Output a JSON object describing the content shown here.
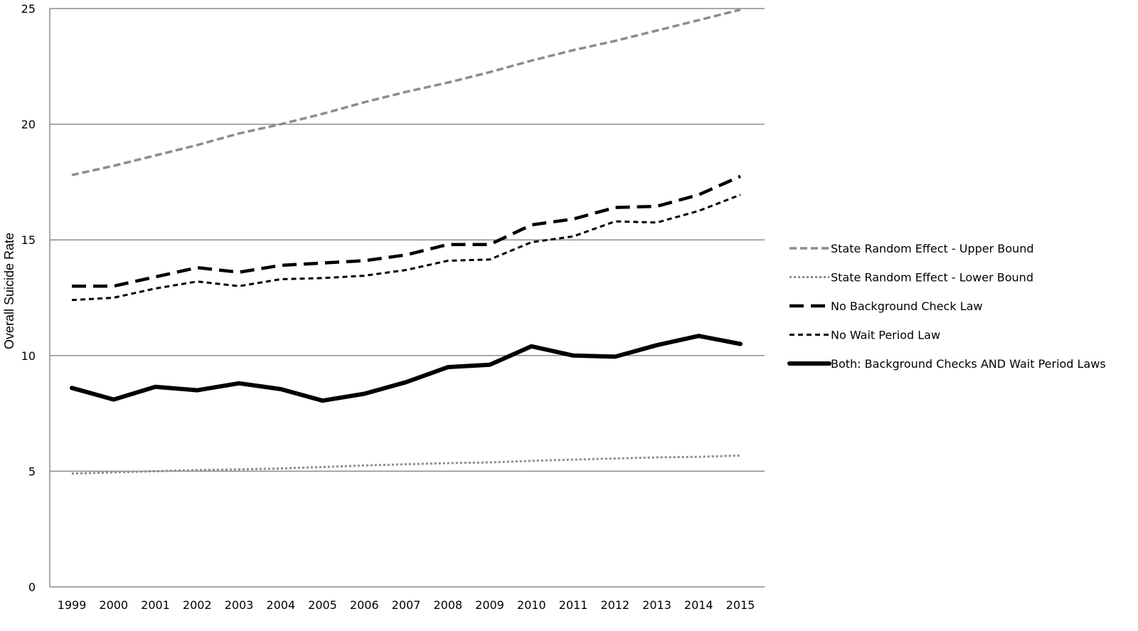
{
  "chart_data": {
    "type": "line",
    "ylabel": "Overall Suicide Rate",
    "xlabel": "",
    "ylim": [
      0,
      25
    ],
    "y_ticks": [
      0,
      5,
      10,
      15,
      20,
      25
    ],
    "grid": "horizontal",
    "legend_position": "right",
    "categories": [
      "1999",
      "2000",
      "2001",
      "2002",
      "2003",
      "2004",
      "2005",
      "2006",
      "2007",
      "2008",
      "2009",
      "2010",
      "2011",
      "2012",
      "2013",
      "2014",
      "2015"
    ],
    "series": [
      {
        "name": "State Random Effect - Upper Bound",
        "color": "#8c8c8c",
        "style": "dashed",
        "values": [
          17.8,
          18.2,
          18.65,
          19.1,
          19.6,
          20.0,
          20.45,
          20.95,
          21.4,
          21.8,
          22.25,
          22.75,
          23.2,
          23.6,
          24.05,
          24.5,
          24.95
        ]
      },
      {
        "name": "State Random Effect - Lower Bound",
        "color": "#8c8c8c",
        "style": "dotted",
        "values": [
          4.9,
          4.95,
          5.0,
          5.05,
          5.08,
          5.12,
          5.18,
          5.25,
          5.3,
          5.35,
          5.38,
          5.45,
          5.5,
          5.55,
          5.6,
          5.62,
          5.68
        ]
      },
      {
        "name": "No Background Check Law",
        "color": "#000000",
        "style": "long-dash",
        "values": [
          13.0,
          13.0,
          13.4,
          13.8,
          13.6,
          13.9,
          14.0,
          14.1,
          14.35,
          14.8,
          14.8,
          15.65,
          15.9,
          16.4,
          16.45,
          16.95,
          17.75
        ]
      },
      {
        "name": "No Wait Period Law",
        "color": "#000000",
        "style": "short-dash",
        "values": [
          12.4,
          12.5,
          12.9,
          13.2,
          13.0,
          13.3,
          13.35,
          13.45,
          13.7,
          14.1,
          14.15,
          14.9,
          15.15,
          15.8,
          15.75,
          16.25,
          16.95
        ]
      },
      {
        "name": "Both: Background Checks AND Wait Period Laws",
        "color": "#000000",
        "style": "solid",
        "values": [
          8.6,
          8.1,
          8.65,
          8.5,
          8.8,
          8.55,
          8.05,
          8.35,
          8.85,
          9.5,
          9.6,
          10.4,
          10.0,
          9.95,
          10.45,
          10.85,
          10.5
        ]
      }
    ]
  }
}
